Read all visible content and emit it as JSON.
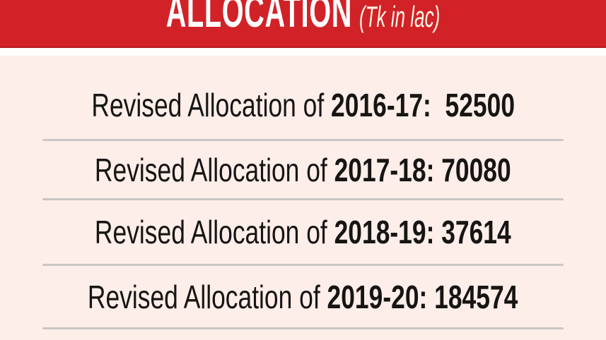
{
  "header": {
    "title": "ALLOCATION",
    "unit": "(Tk in lac)"
  },
  "rows": [
    {
      "prefix": "Revised Allocation of ",
      "value_text": "2016-17:  52500",
      "year": "2016-17",
      "value": 52500
    },
    {
      "prefix": "Revised Allocation of ",
      "value_text": "2017-18: 70080",
      "year": "2017-18",
      "value": 70080
    },
    {
      "prefix": "Revised Allocation of ",
      "value_text": "2018-19: 37614",
      "year": "2018-19",
      "value": 37614
    },
    {
      "prefix": "Revised Allocation of ",
      "value_text": "2019-20: 184574",
      "year": "2019-20",
      "value": 184574
    }
  ],
  "chart_data": {
    "type": "table",
    "title": "ALLOCATION",
    "unit_label": "(Tk in lac)",
    "row_label_prefix": "Revised Allocation of",
    "categories": [
      "2016-17",
      "2017-18",
      "2018-19",
      "2019-20"
    ],
    "values": [
      52500,
      70080,
      37614,
      184574
    ]
  },
  "colors": {
    "banner_red": "#d12228",
    "banner_edge_red": "#b51e24",
    "background_pink": "#fdeeea",
    "divider_gray": "#cac7c4",
    "text_dark": "#171513",
    "title_white": "#ffffff",
    "unit_cream": "#fbf3e2"
  }
}
